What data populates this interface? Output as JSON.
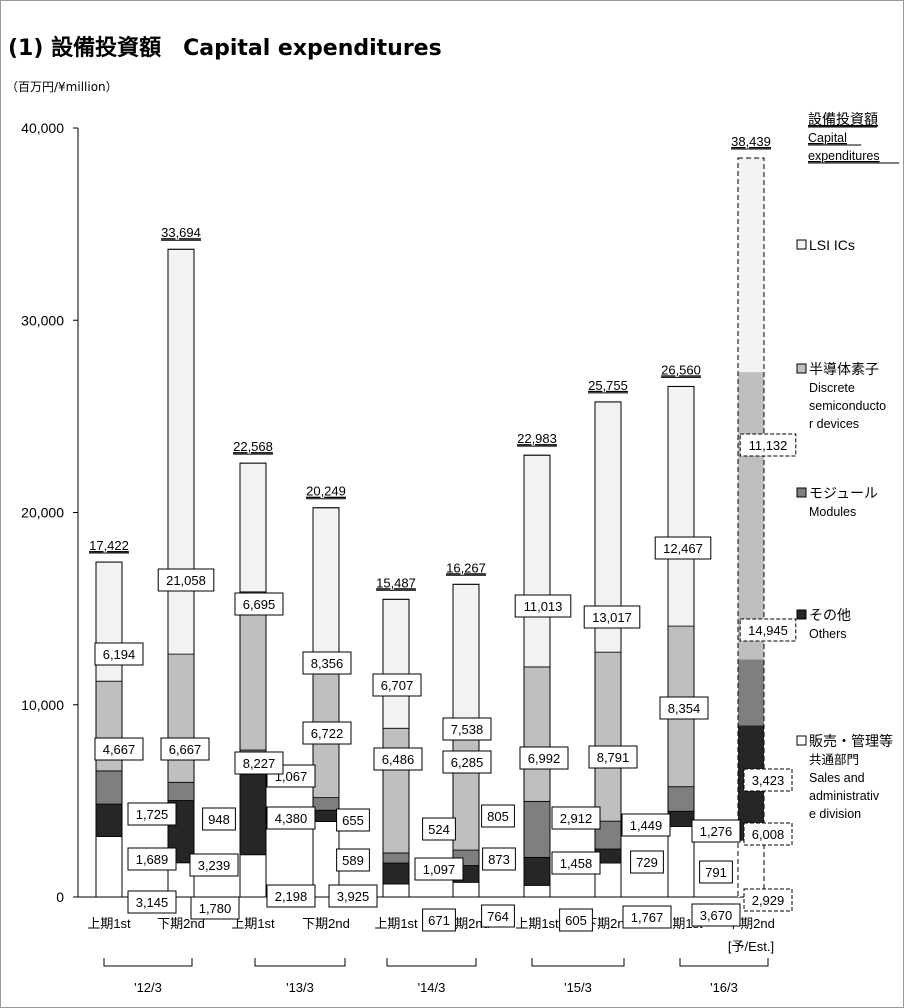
{
  "title": "(1) 設備投資額　Capital expenditures",
  "unit_label": "（百万円/¥million）",
  "chart_data": {
    "type": "bar",
    "stacked": true,
    "ylim": [
      0,
      40000
    ],
    "yticks": [
      "0",
      "10,000",
      "20,000",
      "30,000",
      "40,000"
    ],
    "categories": [
      "上期1st",
      "下期2nd",
      "上期1st",
      "下期2nd",
      "上期1st",
      "下期2nd",
      "上期1st",
      "下期2nd",
      "上期1st",
      "下期2nd"
    ],
    "forecast_note": "[予/Est.]",
    "fiscal_years": [
      "'12/3",
      "'13/3",
      "'14/3",
      "'15/3",
      "'16/3"
    ],
    "totals": [
      17422,
      33694,
      22568,
      20249,
      15487,
      16267,
      22983,
      25755,
      26560,
      38439
    ],
    "total_labels": [
      "17,422",
      "33,694",
      "22,568",
      "20,249",
      "15,487",
      "16,267",
      "22,983",
      "25,755",
      "26,560",
      "38,439"
    ],
    "series": [
      {
        "name": "販売・管理等共通部門 Sales and administrative division",
        "color": "#ffffff",
        "values": [
          3145,
          1780,
          2198,
          3925,
          671,
          764,
          605,
          1767,
          3670,
          2929
        ],
        "labels": [
          "3,145",
          "1,780",
          "2,198",
          "3,925",
          "671",
          "764",
          "605",
          "1,767",
          "3,670",
          "2,929"
        ]
      },
      {
        "name": "その他 Others",
        "color": "#262626",
        "values": [
          1689,
          3239,
          4380,
          589,
          1097,
          873,
          1458,
          729,
          791,
          6008
        ],
        "labels": [
          "1,689",
          "3,239",
          "4,380",
          "589",
          "1,097",
          "873",
          "1,458",
          "729",
          "791",
          "6,008"
        ]
      },
      {
        "name": "モジュール Modules",
        "color": "#7f7f7f",
        "values": [
          1725,
          948,
          1067,
          655,
          524,
          805,
          2912,
          1449,
          1276,
          3423
        ],
        "labels": [
          "1,725",
          "948",
          "1,067",
          "655",
          "524",
          "805",
          "2,912",
          "1,449",
          "1,276",
          "3,423"
        ]
      },
      {
        "name": "半導体素子 Discrete semiconductor devices",
        "color": "#bfbfbf",
        "values": [
          4667,
          6667,
          8227,
          6722,
          6486,
          6285,
          6992,
          8791,
          8354,
          14945
        ],
        "labels": [
          "4,667",
          "6,667",
          "8,227",
          "6,722",
          "6,486",
          "6,285",
          "6,992",
          "8,791",
          "8,354",
          "14,945"
        ]
      },
      {
        "name": "LSI ICs",
        "color": "#f2f2f2",
        "values": [
          6194,
          21058,
          6695,
          8356,
          6707,
          7538,
          11013,
          13017,
          12467,
          11132
        ],
        "labels": [
          "6,194",
          "21,058",
          "6,695",
          "8,356",
          "6,707",
          "7,538",
          "11,013",
          "13,017",
          "12,467",
          "11,132"
        ]
      }
    ],
    "legend": [
      {
        "lines": [
          "設備投資額",
          "Capital",
          "expenditures"
        ],
        "underline": true,
        "marker": false
      },
      {
        "lines": [
          "LSI  ICs"
        ],
        "marker": true,
        "color": "#f2f2f2"
      },
      {
        "lines": [
          "半導体素子",
          "Discrete",
          "semiconducto",
          "r devices"
        ],
        "marker": true,
        "color": "#bfbfbf"
      },
      {
        "lines": [
          "モジュール",
          "Modules"
        ],
        "marker": true,
        "color": "#7f7f7f"
      },
      {
        "lines": [
          "その他",
          "Others"
        ],
        "marker": true,
        "color": "#262626"
      },
      {
        "lines": [
          "販売・管理等",
          "共通部門",
          "Sales and",
          "administrativ",
          "e division"
        ],
        "marker": true,
        "color": "#ffffff"
      }
    ]
  }
}
